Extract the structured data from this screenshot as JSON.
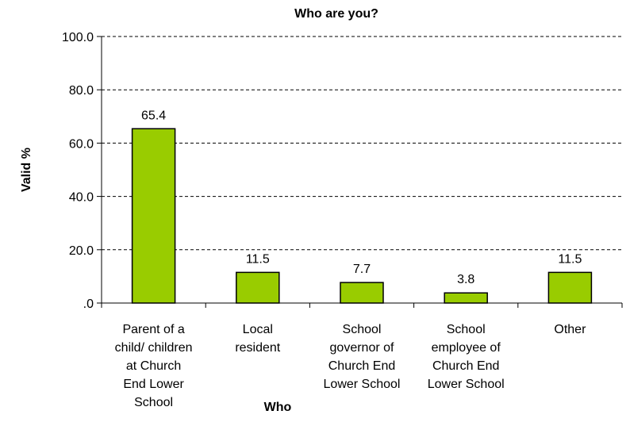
{
  "chart_data": {
    "type": "bar",
    "title": "Who are you?",
    "xlabel": "Who",
    "ylabel": "Valid %",
    "ylim": [
      0,
      100
    ],
    "yticks": [
      ".0",
      "20.0",
      "40.0",
      "60.0",
      "80.0",
      "100.0"
    ],
    "grid": true,
    "categories": [
      [
        "Parent of a",
        "child/ children",
        "at Church",
        "End Lower",
        "School"
      ],
      [
        "Local",
        "resident"
      ],
      [
        "School",
        "governor of",
        "Church End",
        "Lower School"
      ],
      [
        "School",
        "employee of",
        "Church End",
        "Lower School"
      ],
      [
        "Other"
      ]
    ],
    "values": [
      65.4,
      11.5,
      7.7,
      3.8,
      11.5
    ],
    "data_labels": [
      "65.4",
      "11.5",
      "7.7",
      "3.8",
      "11.5"
    ],
    "bar_color": "#99cc00"
  }
}
